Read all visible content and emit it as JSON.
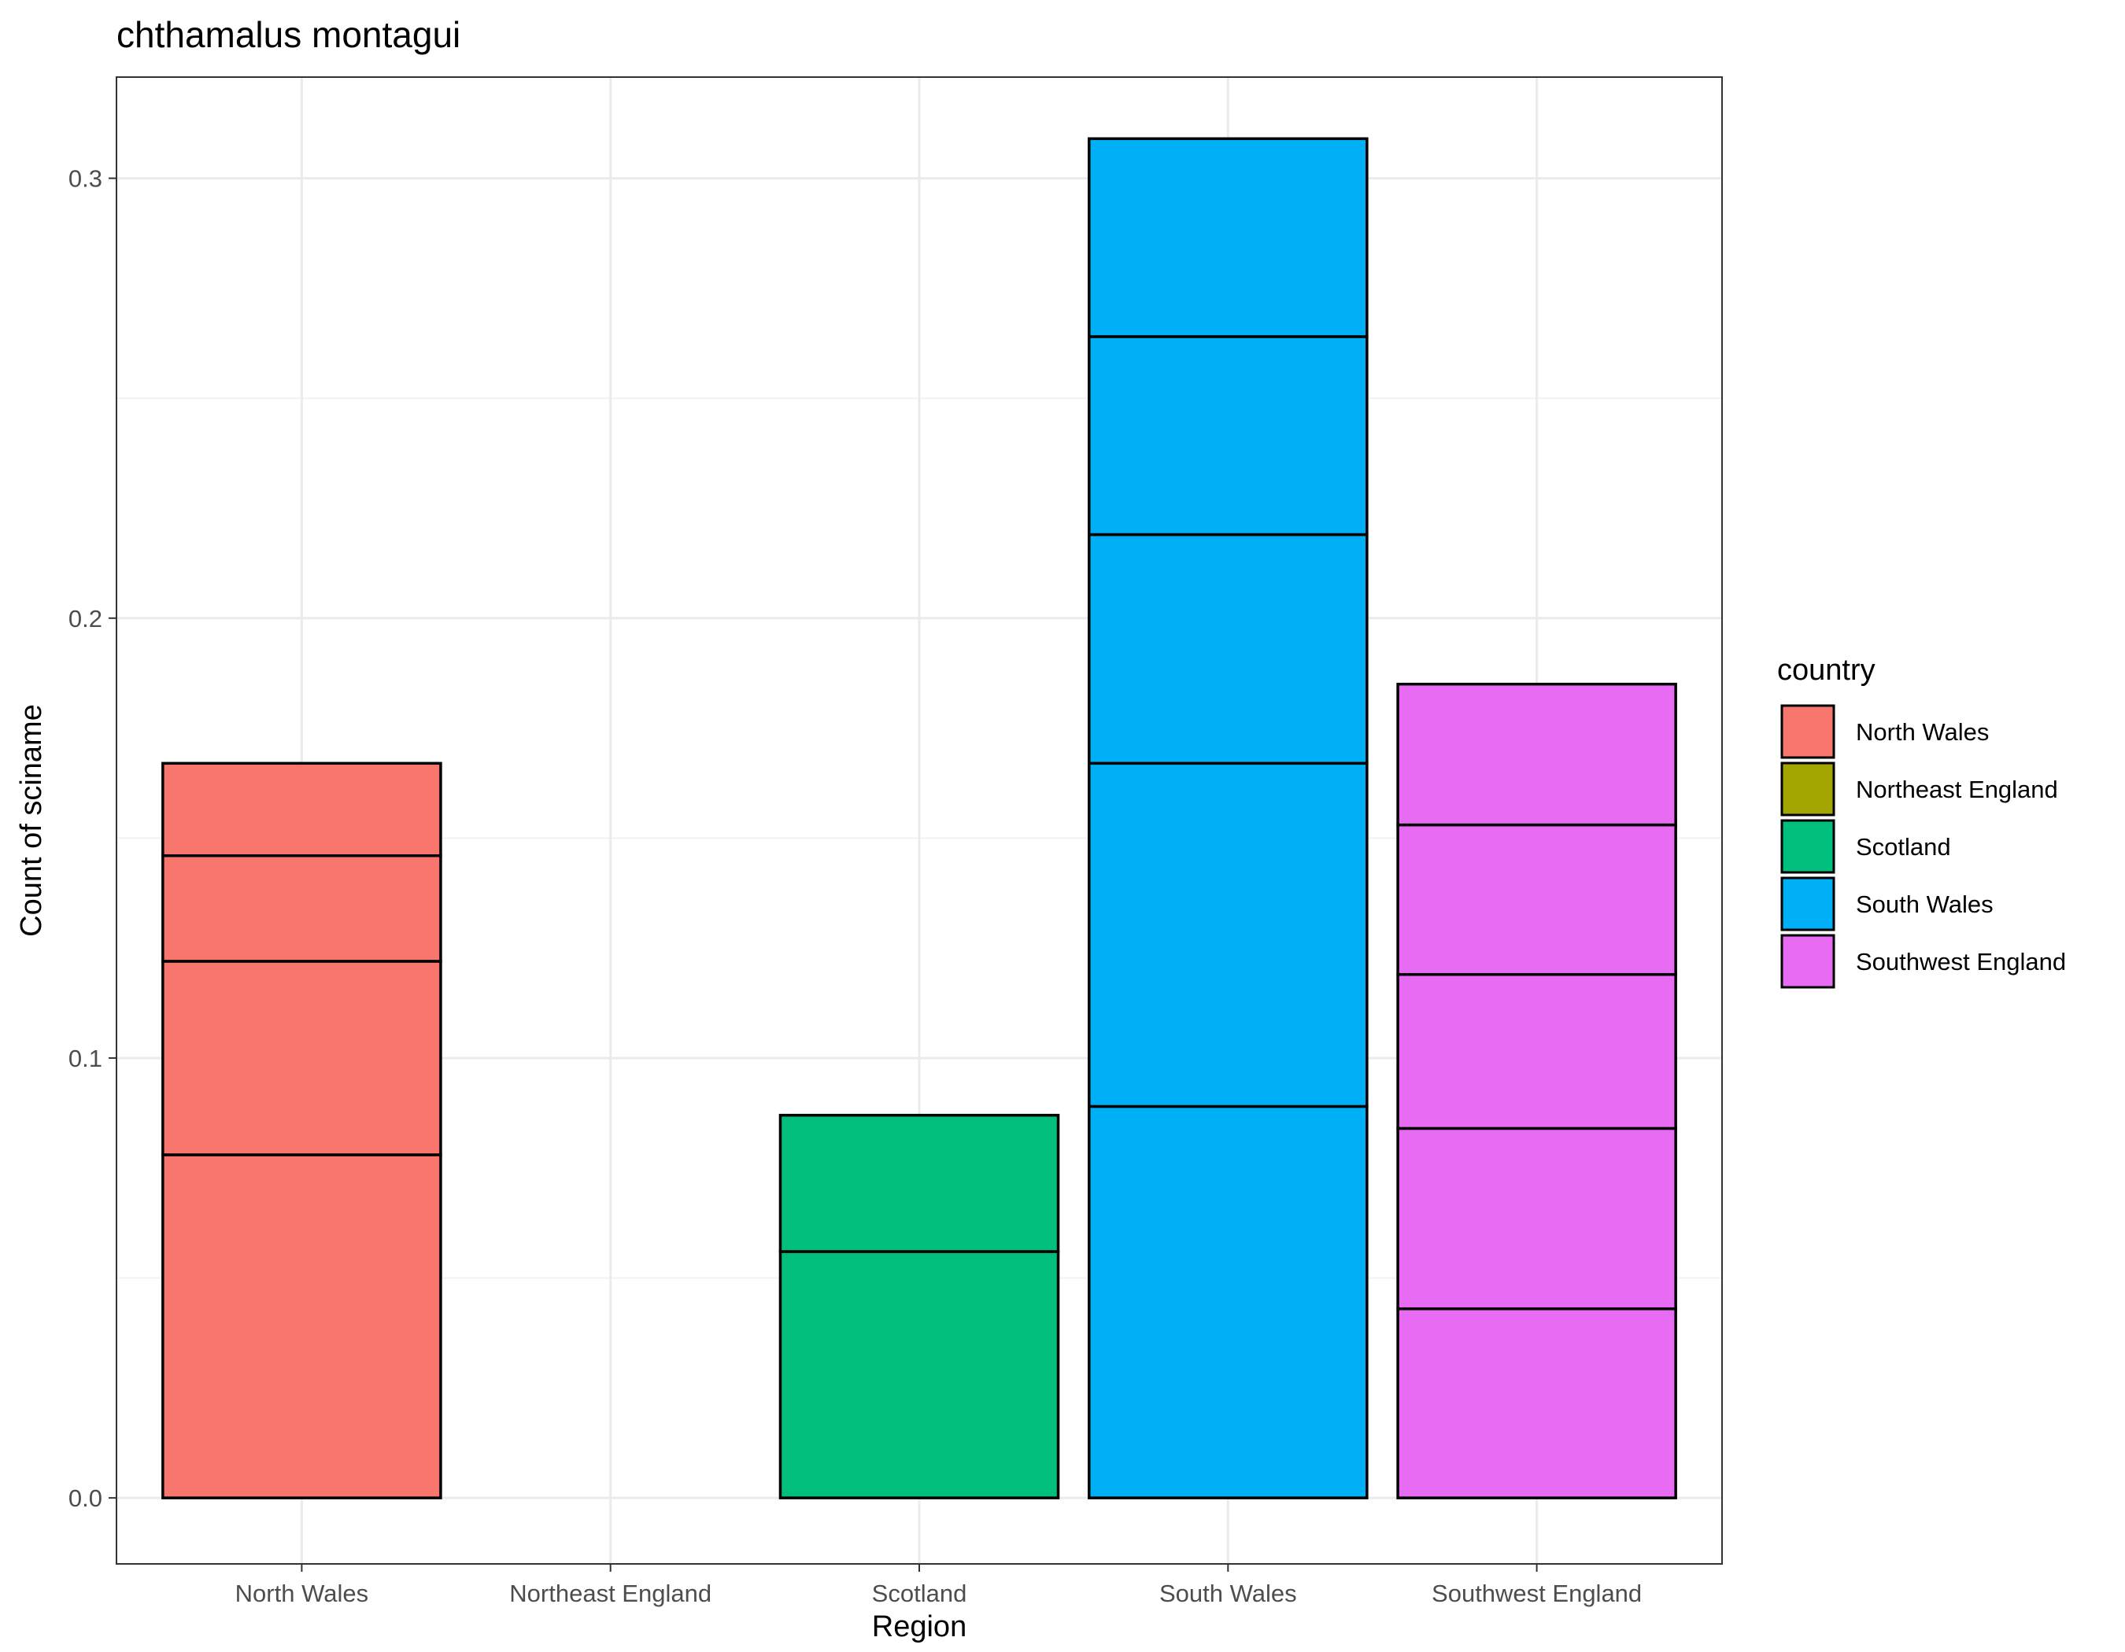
{
  "chart_data": {
    "type": "bar",
    "stacked": true,
    "title": "chthamalus montagui",
    "xlabel": "Region",
    "ylabel": "Count of sciname",
    "categories": [
      "North Wales",
      "Northeast England",
      "Scotland",
      "South Wales",
      "Southwest England"
    ],
    "stack_segments": [
      [
        0.078,
        0.044,
        0.024,
        0.021
      ],
      [
        0.0
      ],
      [
        0.056,
        0.031
      ],
      [
        0.089,
        0.078,
        0.052,
        0.045,
        0.045
      ],
      [
        0.043,
        0.041,
        0.035,
        0.034,
        0.032
      ]
    ],
    "totals": [
      0.167,
      0.0,
      0.087,
      0.309,
      0.185
    ],
    "ylim": [
      -0.015,
      0.323
    ],
    "yticks": [
      0.0,
      0.1,
      0.2,
      0.3
    ],
    "ytick_labels": [
      "0.0",
      "0.1",
      "0.2",
      "0.3"
    ],
    "grid": true,
    "legend": {
      "title": "country",
      "position": "right",
      "entries": [
        "North Wales",
        "Northeast England",
        "Scotland",
        "South Wales",
        "Southwest England"
      ]
    },
    "colors": [
      "#F8766D",
      "#A3A500",
      "#00BF7D",
      "#00B0F6",
      "#E76BF3"
    ]
  }
}
